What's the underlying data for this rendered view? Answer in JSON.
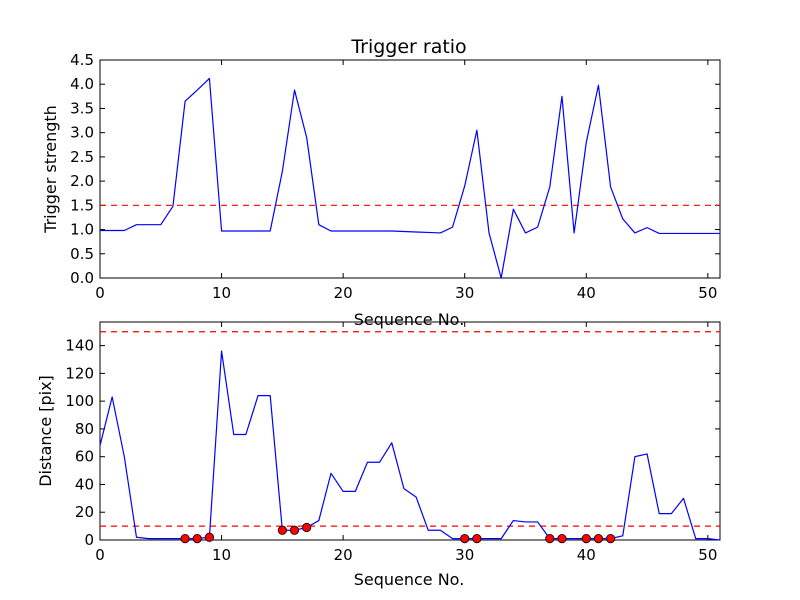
{
  "chart_data": [
    {
      "type": "line",
      "title": "Trigger ratio",
      "xlabel": "Sequence No.",
      "ylabel": "Trigger strength",
      "xlim": [
        0,
        51
      ],
      "ylim": [
        0,
        4.5
      ],
      "xticks": [
        0,
        10,
        20,
        30,
        40,
        50
      ],
      "yticks": [
        0.0,
        0.5,
        1.0,
        1.5,
        2.0,
        2.5,
        3.0,
        3.5,
        4.0,
        4.5
      ],
      "ytick_labels": [
        "0.0",
        "0.5",
        "1.0",
        "1.5",
        "2.0",
        "2.5",
        "3.0",
        "3.5",
        "4.0",
        "4.5"
      ],
      "grid": false,
      "line_color": "#0000ff",
      "threshold_color": "#ff0000",
      "x": [
        0,
        1,
        2,
        3,
        4,
        5,
        6,
        7,
        8,
        9,
        10,
        11,
        12,
        13,
        14,
        15,
        16,
        17,
        18,
        19,
        20,
        21,
        22,
        23,
        24,
        25,
        26,
        27,
        28,
        29,
        30,
        31,
        32,
        33,
        34,
        35,
        36,
        37,
        38,
        39,
        40,
        41,
        42,
        43,
        44,
        45,
        46,
        47,
        48,
        49,
        50,
        51
      ],
      "values": [
        0.98,
        0.98,
        0.98,
        1.1,
        1.1,
        1.1,
        1.48,
        3.65,
        3.88,
        4.12,
        0.97,
        0.97,
        0.97,
        0.97,
        0.97,
        2.2,
        3.88,
        2.9,
        1.1,
        0.97,
        0.97,
        0.97,
        0.97,
        0.97,
        0.97,
        0.96,
        0.95,
        0.94,
        0.93,
        1.05,
        1.9,
        3.05,
        0.93,
        0.0,
        1.42,
        0.93,
        1.05,
        1.88,
        3.75,
        0.93,
        2.8,
        3.98,
        1.88,
        1.22,
        0.93,
        1.04,
        0.92,
        0.92,
        0.92,
        0.92,
        0.92,
        0.92
      ],
      "threshold": 1.5
    },
    {
      "type": "line",
      "title": "",
      "xlabel": "Sequence No.",
      "ylabel": "Distance [pix]",
      "xlim": [
        0,
        51
      ],
      "ylim": [
        0,
        157
      ],
      "xticks": [
        0,
        10,
        20,
        30,
        40,
        50
      ],
      "yticks": [
        0,
        20,
        40,
        60,
        80,
        100,
        120,
        140
      ],
      "ytick_labels": [
        "0",
        "20",
        "40",
        "60",
        "80",
        "100",
        "120",
        "140"
      ],
      "grid": false,
      "line_color": "#0000ff",
      "threshold_color": "#ff0000",
      "marker_color": "#ff0000",
      "x": [
        0,
        1,
        2,
        3,
        4,
        5,
        6,
        7,
        8,
        9,
        10,
        11,
        12,
        13,
        14,
        15,
        16,
        17,
        18,
        19,
        20,
        21,
        22,
        23,
        24,
        25,
        26,
        27,
        28,
        29,
        30,
        31,
        32,
        33,
        34,
        35,
        36,
        37,
        38,
        39,
        40,
        41,
        42,
        43,
        44,
        45,
        46,
        47,
        48,
        49,
        50,
        51
      ],
      "values": [
        68,
        103,
        60,
        2,
        1,
        1,
        1,
        1,
        1,
        2,
        136,
        76,
        76,
        104,
        104,
        7,
        7,
        9,
        14,
        48,
        35,
        35,
        56,
        56,
        70,
        37,
        31,
        7,
        7,
        1,
        1,
        1,
        1,
        1,
        14,
        13,
        13,
        1,
        1,
        1,
        1,
        1,
        1,
        3,
        60,
        62,
        19,
        19,
        30,
        1,
        1,
        0
      ],
      "thresholds": [
        150,
        10
      ],
      "markers": [
        {
          "x": 7,
          "y": 1
        },
        {
          "x": 8,
          "y": 1
        },
        {
          "x": 9,
          "y": 2
        },
        {
          "x": 15,
          "y": 7
        },
        {
          "x": 16,
          "y": 7
        },
        {
          "x": 17,
          "y": 9
        },
        {
          "x": 30,
          "y": 1
        },
        {
          "x": 31,
          "y": 1
        },
        {
          "x": 37,
          "y": 1
        },
        {
          "x": 38,
          "y": 1
        },
        {
          "x": 40,
          "y": 1
        },
        {
          "x": 41,
          "y": 1
        },
        {
          "x": 42,
          "y": 1
        }
      ]
    }
  ]
}
